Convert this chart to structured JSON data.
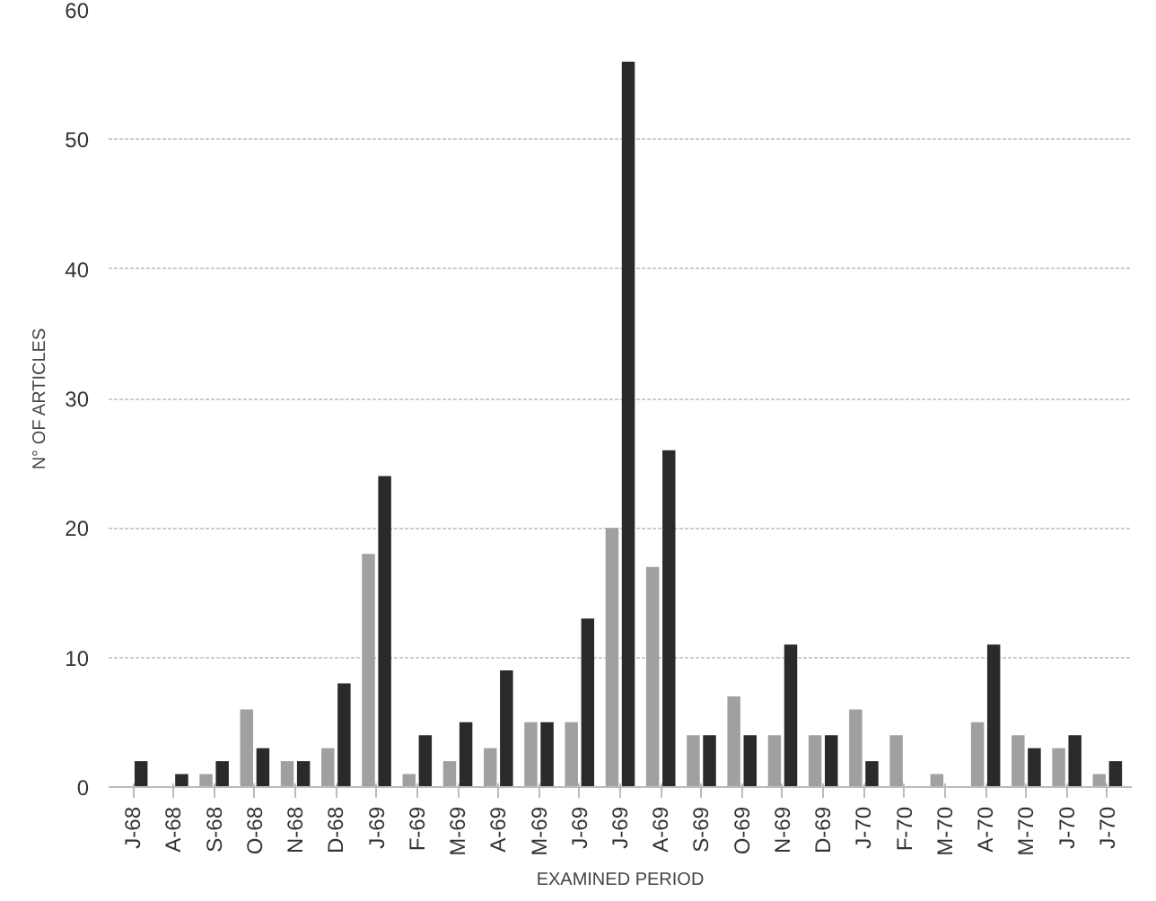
{
  "chart_data": {
    "type": "bar",
    "xlabel": "EXAMINED PERIOD",
    "ylabel": "N° OF ARTICLES",
    "categories": [
      "J-68",
      "A-68",
      "S-68",
      "O-68",
      "N-68",
      "D-68",
      "J-69",
      "F-69",
      "M-69",
      "A-69",
      "M-69",
      "J-69",
      "J-69",
      "A-69",
      "S-69",
      "O-69",
      "N-69",
      "D-69",
      "J-70",
      "F-70",
      "M-70",
      "A-70",
      "M-70",
      "J-70",
      "J-70"
    ],
    "series": [
      {
        "color": "#a0a0a0",
        "values": [
          0,
          0,
          1,
          6,
          2,
          3,
          18,
          1,
          2,
          3,
          5,
          5,
          20,
          17,
          4,
          7,
          4,
          4,
          6,
          4,
          1,
          5,
          4,
          3,
          1
        ]
      },
      {
        "color": "#2a2a2a",
        "values": [
          2,
          1,
          2,
          3,
          2,
          8,
          24,
          4,
          5,
          9,
          5,
          13,
          56,
          26,
          4,
          4,
          11,
          4,
          2,
          0,
          0,
          11,
          3,
          4,
          2
        ]
      }
    ],
    "ylim": [
      0,
      60
    ],
    "yticks": [
      0,
      10,
      20,
      30,
      40,
      50,
      60
    ],
    "grid": "y"
  }
}
